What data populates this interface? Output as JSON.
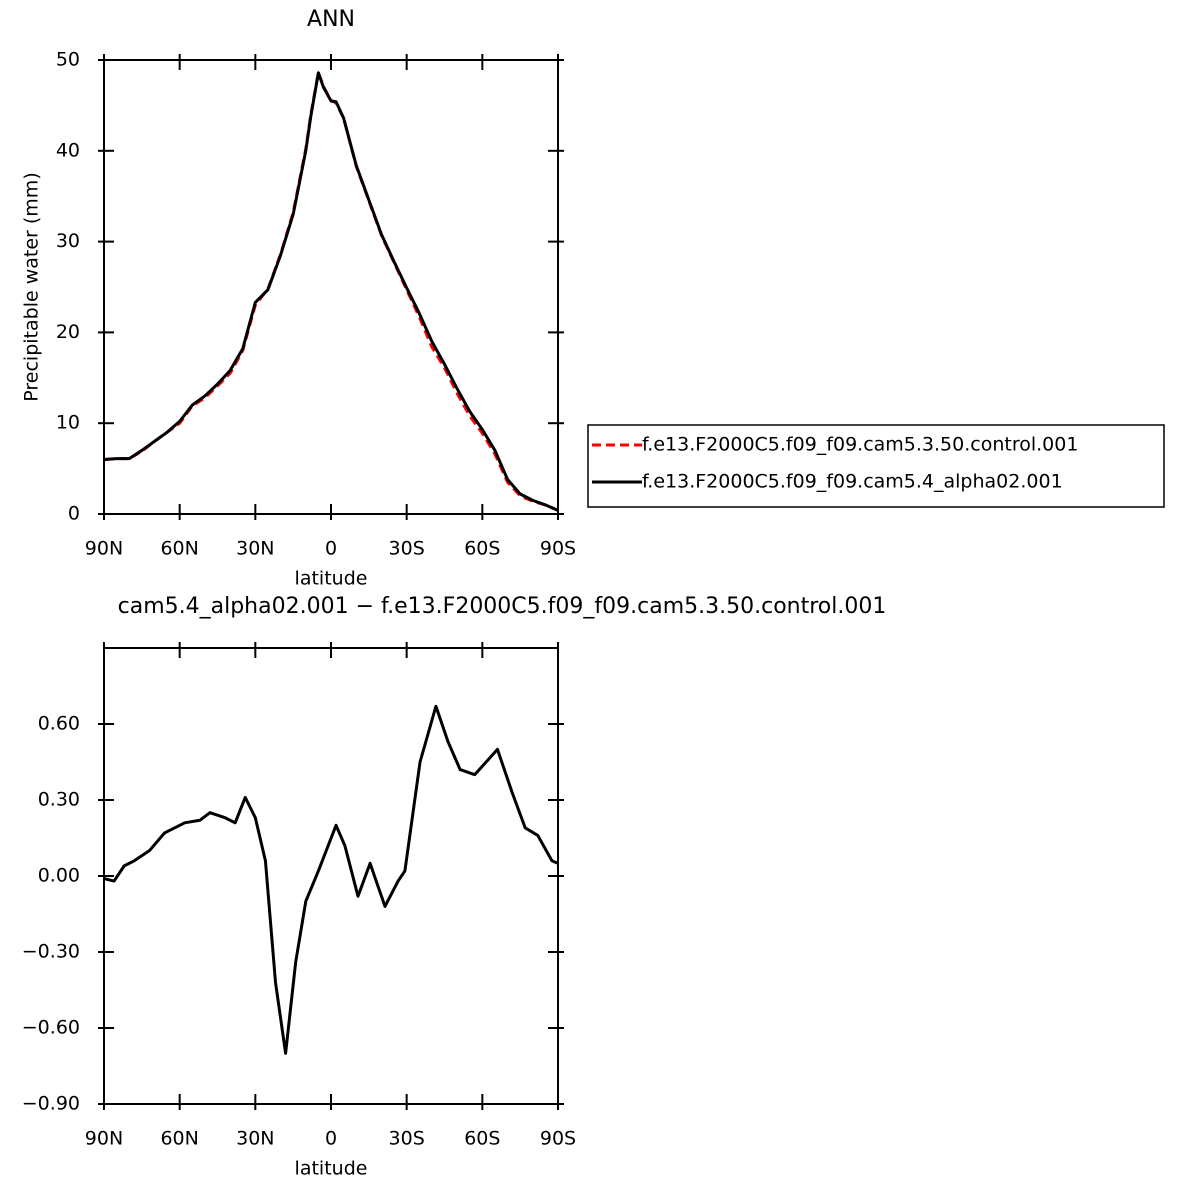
{
  "chart_data": [
    {
      "type": "line",
      "title": "ANN",
      "x_label": "latitude",
      "y_label": "Precipitable water (mm)",
      "x": [
        90,
        85,
        80,
        75,
        70,
        65,
        60,
        55,
        50,
        45,
        40,
        35,
        30,
        25,
        20,
        15,
        10,
        8,
        5,
        3,
        0,
        -2,
        -5,
        -10,
        -15,
        -20,
        -25,
        -30,
        -35,
        -40,
        -45,
        -50,
        -55,
        -60,
        -65,
        -70,
        -75,
        -80,
        -85,
        -90
      ],
      "series": [
        {
          "name": "f.e13.F2000C5.f09_f09.cam5.3.50.control.001",
          "color": "#ff0000",
          "dash": true,
          "values": [
            6,
            6.1,
            6.1,
            6.9,
            8,
            9,
            10,
            11.9,
            12.8,
            14.1,
            15.5,
            18,
            23,
            24.8,
            28.6,
            33.2,
            40.2,
            44,
            48.6,
            47.1,
            45.5,
            45.3,
            43.6,
            38.3,
            34.5,
            30.7,
            27.7,
            24.7,
            21.7,
            18.4,
            16.1,
            13.3,
            10.8,
            8.9,
            6.6,
            3.5,
            2,
            1.4,
            1,
            0.4
          ]
        },
        {
          "name": "f.e13.F2000C5.f09_f09.cam5.4_alpha02.001",
          "color": "#000000",
          "dash": false,
          "values": [
            6,
            6.1,
            6.1,
            7,
            8,
            9,
            10.2,
            12,
            13,
            14.3,
            15.8,
            18.2,
            23.3,
            24.7,
            28.5,
            33,
            40,
            43.8,
            48.6,
            47,
            45.5,
            45.4,
            43.6,
            38.4,
            34.6,
            30.8,
            27.8,
            24.9,
            22.1,
            19,
            16.5,
            13.8,
            11.3,
            9.3,
            7,
            3.8,
            2.2,
            1.5,
            1,
            0.4
          ]
        }
      ],
      "xlim": [
        90,
        -90
      ],
      "xticks": [
        {
          "value": 90,
          "label": "90N"
        },
        {
          "value": 60,
          "label": "60N"
        },
        {
          "value": 30,
          "label": "30N"
        },
        0,
        {
          "value": -30,
          "label": "30S"
        },
        {
          "value": -60,
          "label": "60S"
        },
        {
          "value": -90,
          "label": "90S"
        }
      ],
      "ylim": [
        0,
        50
      ],
      "yticks": [
        0,
        10,
        20,
        30,
        40,
        50
      ],
      "legend": "right"
    },
    {
      "type": "line",
      "title": "cam5.4_alpha02.001 − f.e13.F2000C5.f09_f09.cam5.3.50.control.001",
      "x_label": "latitude",
      "x": [
        90,
        86,
        82,
        78,
        72,
        66,
        58,
        52,
        48,
        42,
        38,
        34,
        30,
        26,
        22,
        18,
        14,
        10,
        5,
        -2,
        -5.5,
        -10.7,
        -15.5,
        -21.4,
        -26.6,
        -29.3,
        -35.3,
        -41.6,
        -46.4,
        -51.2,
        -57,
        -66,
        -71.8,
        -77,
        -82,
        -87.6,
        -90
      ],
      "series": [
        {
          "name": "difference",
          "color": "#000000",
          "dash": false,
          "values": [
            -0.01,
            -0.02,
            0.04,
            0.06,
            0.1,
            0.17,
            0.21,
            0.22,
            0.25,
            0.23,
            0.21,
            0.31,
            0.23,
            0.06,
            -0.42,
            -0.7,
            -0.34,
            -0.1,
            0.02,
            0.2,
            0.12,
            -0.08,
            0.05,
            -0.12,
            -0.02,
            0.02,
            0.45,
            0.67,
            0.53,
            0.42,
            0.4,
            0.5,
            0.33,
            0.19,
            0.16,
            0.06,
            0.05
          ]
        }
      ],
      "xlim": [
        90,
        -90
      ],
      "xticks": [
        {
          "value": 90,
          "label": "90N"
        },
        {
          "value": 60,
          "label": "60N"
        },
        {
          "value": 30,
          "label": "30N"
        },
        0,
        {
          "value": -30,
          "label": "30S"
        },
        {
          "value": -60,
          "label": "60S"
        },
        {
          "value": -90,
          "label": "90S"
        }
      ],
      "ylim": [
        -0.9,
        0.9
      ],
      "yticks": [
        {
          "value": -0.9,
          "label": "−0.90"
        },
        {
          "value": -0.6,
          "label": "−0.60"
        },
        {
          "value": -0.3,
          "label": "−0.30"
        },
        {
          "value": 0,
          "label": "0.00"
        },
        {
          "value": 0.3,
          "label": "0.30"
        },
        {
          "value": 0.6,
          "label": "0.60"
        }
      ]
    }
  ]
}
